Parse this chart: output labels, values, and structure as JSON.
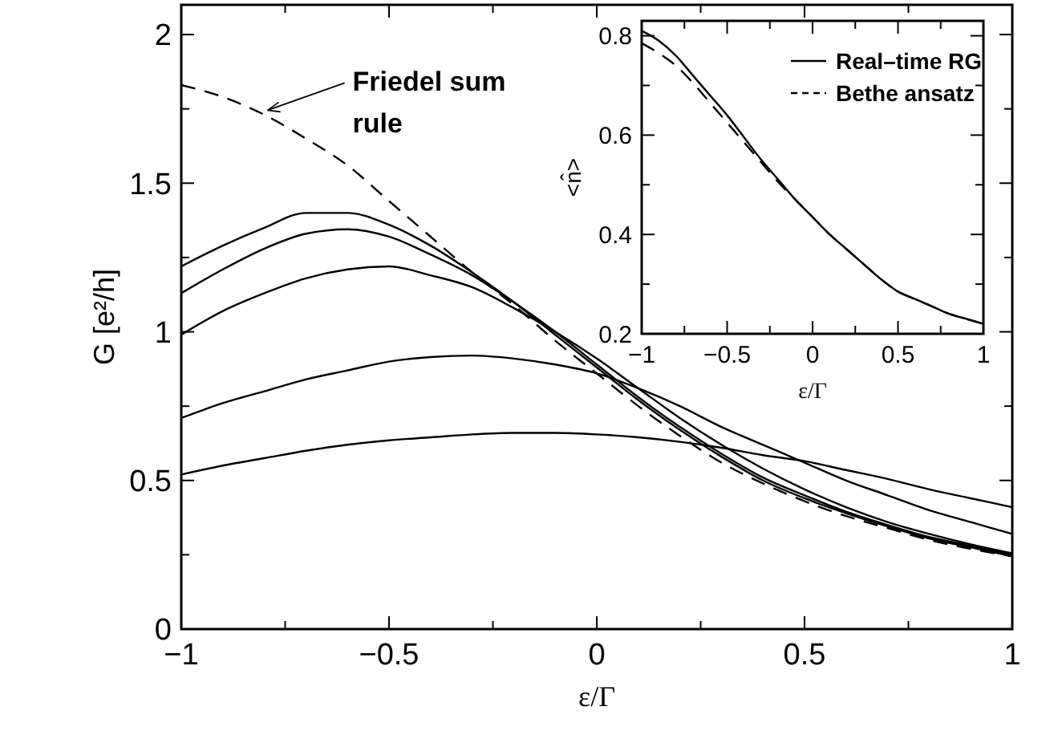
{
  "chart_data": [
    {
      "type": "line",
      "xlabel": "ε/Γ",
      "ylabel": "G [e²/h]",
      "xlim": [
        -1,
        1
      ],
      "ylim": [
        0,
        2.1
      ],
      "xticks": [
        -1,
        {
          "value": -0.75,
          "label": null
        },
        -0.5,
        {
          "value": -0.25,
          "label": null
        },
        0,
        {
          "value": 0.25,
          "label": null
        },
        0.5,
        {
          "value": 0.75,
          "label": null
        },
        1
      ],
      "yticks": [
        0,
        {
          "value": 0.25,
          "label": null
        },
        0.5,
        {
          "value": 0.75,
          "label": null
        },
        1,
        {
          "value": 1.25,
          "label": null
        },
        1.5,
        {
          "value": 1.75,
          "label": null
        },
        2
      ],
      "x": [
        -1,
        -0.9,
        -0.8,
        -0.7,
        -0.6,
        -0.5,
        -0.4,
        -0.3,
        -0.2,
        -0.1,
        0,
        0.1,
        0.2,
        0.3,
        0.4,
        0.5,
        0.6,
        0.7,
        0.8,
        0.9,
        1
      ],
      "marker": "none",
      "series": [
        {
          "color": "#000000",
          "line_style": "dashed",
          "values": [
            1.83,
            1.79,
            1.73,
            1.65,
            1.56,
            1.44,
            1.32,
            1.2,
            1.09,
            0.97,
            0.86,
            0.75,
            0.65,
            0.56,
            0.49,
            0.43,
            0.38,
            0.34,
            0.3,
            0.27,
            0.245
          ]
        },
        {
          "color": "#000000",
          "line_style": "solid",
          "values": [
            1.22,
            1.29,
            1.35,
            1.4,
            1.4,
            1.36,
            1.29,
            1.2,
            1.1,
            0.99,
            0.88,
            0.77,
            0.67,
            0.58,
            0.5,
            0.44,
            0.39,
            0.345,
            0.305,
            0.275,
            0.245
          ]
        },
        {
          "color": "#000000",
          "line_style": "solid",
          "values": [
            1.13,
            1.21,
            1.28,
            1.33,
            1.345,
            1.32,
            1.26,
            1.19,
            1.1,
            1.0,
            0.89,
            0.78,
            0.68,
            0.59,
            0.51,
            0.45,
            0.395,
            0.35,
            0.31,
            0.28,
            0.25
          ]
        },
        {
          "color": "#000000",
          "line_style": "solid",
          "values": [
            0.99,
            1.07,
            1.13,
            1.18,
            1.21,
            1.22,
            1.19,
            1.15,
            1.08,
            1.0,
            0.91,
            0.81,
            0.71,
            0.62,
            0.54,
            0.47,
            0.41,
            0.36,
            0.32,
            0.285,
            0.255
          ]
        },
        {
          "color": "#000000",
          "line_style": "solid",
          "values": [
            0.71,
            0.76,
            0.8,
            0.84,
            0.87,
            0.9,
            0.915,
            0.92,
            0.91,
            0.89,
            0.86,
            0.81,
            0.75,
            0.68,
            0.62,
            0.56,
            0.5,
            0.45,
            0.4,
            0.36,
            0.32
          ]
        },
        {
          "color": "#000000",
          "line_style": "solid",
          "values": [
            0.52,
            0.55,
            0.575,
            0.6,
            0.62,
            0.635,
            0.645,
            0.655,
            0.66,
            0.66,
            0.655,
            0.645,
            0.63,
            0.61,
            0.585,
            0.565,
            0.535,
            0.505,
            0.47,
            0.44,
            0.41
          ]
        }
      ],
      "annotations": [
        {
          "text": "Friedel sum rule",
          "x": -0.8,
          "y": 1.74
        }
      ]
    },
    {
      "type": "line",
      "xlabel": "ε/Γ",
      "ylabel": "<n̂>",
      "xlim": [
        -1,
        1
      ],
      "ylim": [
        0.2,
        0.83
      ],
      "xticks": [
        -1,
        {
          "value": -0.75,
          "label": null
        },
        -0.5,
        {
          "value": -0.25,
          "label": null
        },
        0,
        {
          "value": 0.25,
          "label": null
        },
        0.5,
        {
          "value": 0.75,
          "label": null
        },
        1
      ],
      "yticks": [
        0.2,
        {
          "value": 0.3,
          "label": null
        },
        0.4,
        {
          "value": 0.5,
          "label": null
        },
        0.6,
        {
          "value": 0.7,
          "label": null
        },
        0.8
      ],
      "x": [
        -1,
        -0.9,
        -0.8,
        -0.7,
        -0.6,
        -0.5,
        -0.4,
        -0.3,
        -0.2,
        -0.1,
        0,
        0.1,
        0.2,
        0.3,
        0.4,
        0.5,
        0.6,
        0.7,
        0.8,
        0.9,
        1
      ],
      "marker": "none",
      "legend": "top right",
      "series": [
        {
          "name": "Real–time RG",
          "color": "#000000",
          "line_style": "solid",
          "values": [
            0.81,
            0.79,
            0.76,
            0.72,
            0.68,
            0.64,
            0.595,
            0.55,
            0.51,
            0.47,
            0.435,
            0.4,
            0.37,
            0.34,
            0.31,
            0.285,
            0.27,
            0.255,
            0.24,
            0.23,
            0.22
          ]
        },
        {
          "name": "Bethe ansatz",
          "color": "#000000",
          "line_style": "dashed",
          "values": [
            0.785,
            0.765,
            0.74,
            0.705,
            0.665,
            0.625,
            0.585,
            0.545,
            0.505,
            0.47,
            0.435,
            0.4,
            0.37,
            0.34,
            0.31,
            0.285,
            0.27,
            0.255,
            0.24,
            0.23,
            0.22
          ]
        }
      ]
    }
  ]
}
